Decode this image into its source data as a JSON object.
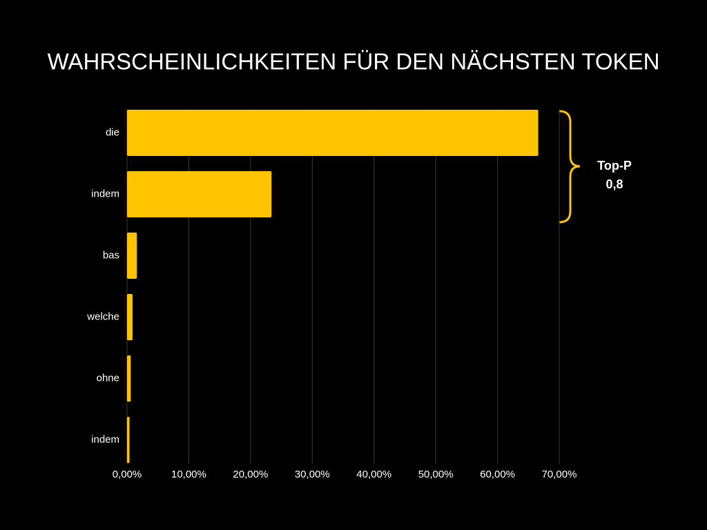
{
  "chart_data": {
    "type": "hbar",
    "title": "WAHRSCHEINLICHKEITEN FÜR DEN NÄCHSTEN TOKEN",
    "categories": [
      "die",
      "indem",
      "bas",
      "welche",
      "ohne",
      "indem"
    ],
    "values": [
      66.6,
      23.4,
      1.6,
      0.9,
      0.6,
      0.4
    ],
    "color": "#ffc400",
    "xlim": [
      0,
      70
    ],
    "xticks": [
      {
        "value": 0,
        "label": "0,00%"
      },
      {
        "value": 10,
        "label": "10,00%"
      },
      {
        "value": 20,
        "label": "20,00%"
      },
      {
        "value": 30,
        "label": "30,00%"
      },
      {
        "value": 40,
        "label": "40,00%"
      },
      {
        "value": 50,
        "label": "50,00%"
      },
      {
        "value": 60,
        "label": "60,00%"
      },
      {
        "value": 70,
        "label": "70,00%"
      }
    ],
    "grid": true,
    "annotation": [
      "Top-P",
      "0,8"
    ]
  }
}
